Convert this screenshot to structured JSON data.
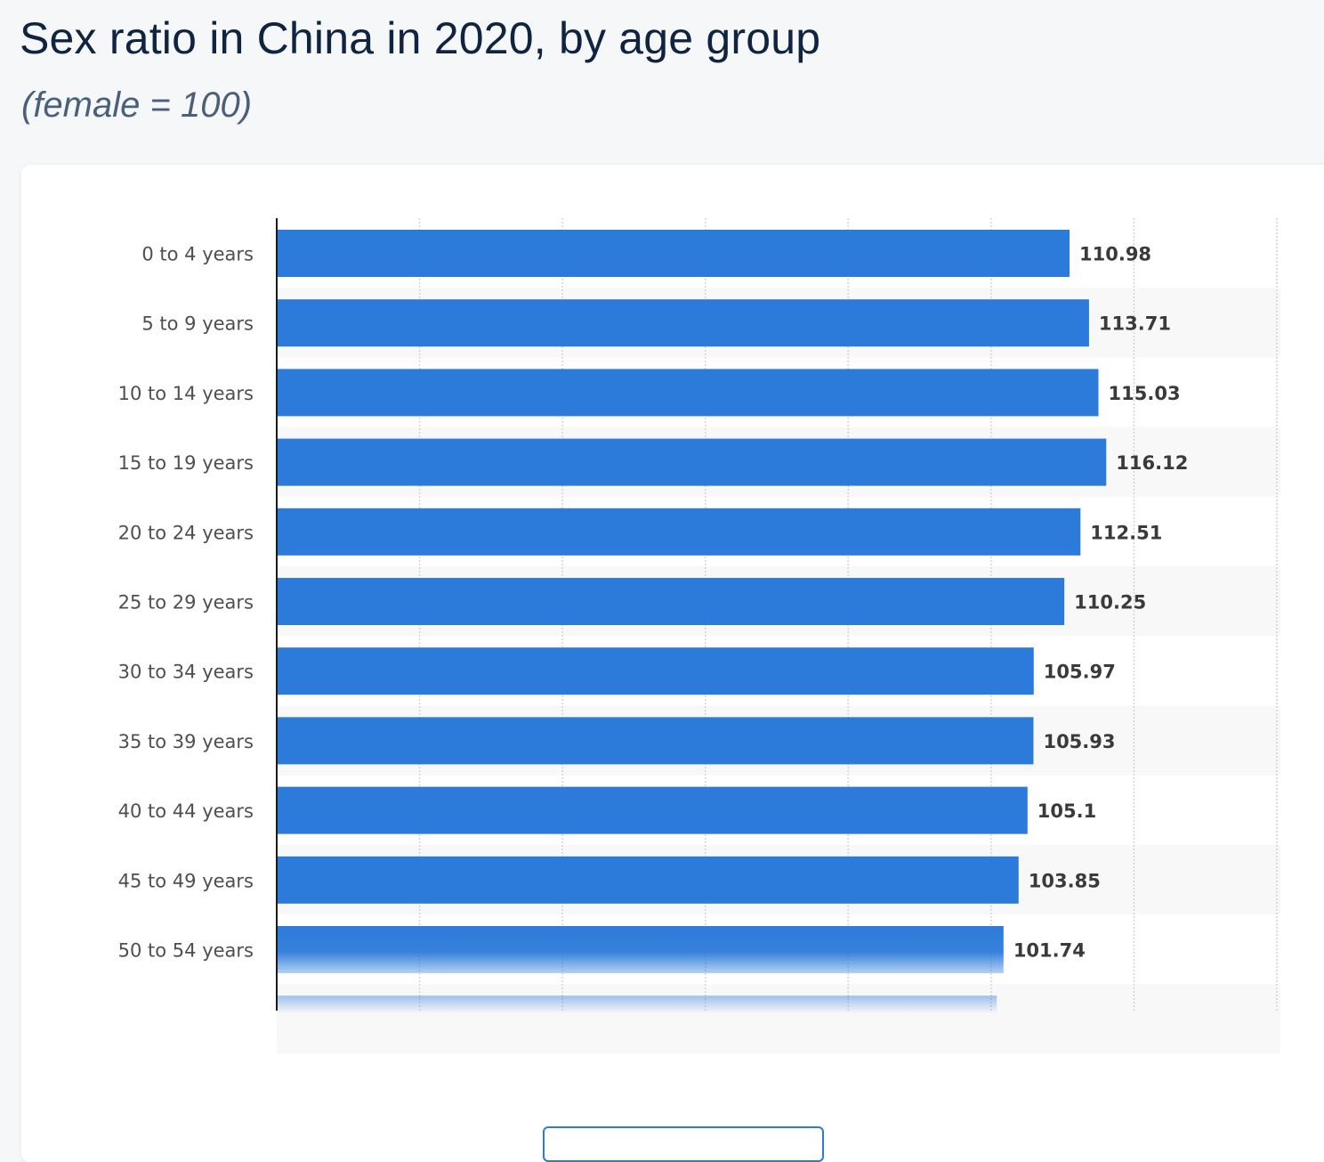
{
  "header": {
    "title": "Sex ratio in China in 2020, by age group",
    "subtitle": "(female = 100)"
  },
  "colors": {
    "bar": "#2c7bda",
    "title": "#0f2440",
    "subtitle": "#4a607a",
    "label": "#4f4f4f",
    "value": "#3a3a3a"
  },
  "chart_data": {
    "type": "bar",
    "orientation": "horizontal",
    "title": "Sex ratio in China in 2020, by age group",
    "subtitle": "(female = 100)",
    "categories": [
      "0 to 4 years",
      "5 to 9 years",
      "10 to 14 years",
      "15 to 19 years",
      "20 to 24 years",
      "25 to 29 years",
      "30 to 34 years",
      "35 to 39 years",
      "40 to 44 years",
      "45 to 49 years",
      "50 to 54 years"
    ],
    "values": [
      110.98,
      113.71,
      115.03,
      116.12,
      112.51,
      110.25,
      105.97,
      105.93,
      105.1,
      103.85,
      101.74
    ],
    "value_labels": [
      "110.98",
      "113.71",
      "115.03",
      "116.12",
      "112.51",
      "110.25",
      "105.97",
      "105.93",
      "105.1",
      "103.85",
      "101.74"
    ],
    "xlim": [
      0,
      140
    ],
    "grid": true,
    "alternating_row_shading": true
  }
}
